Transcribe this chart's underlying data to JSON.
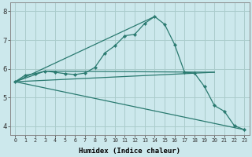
{
  "xlabel": "Humidex (Indice chaleur)",
  "bg_color": "#cce8ec",
  "grid_color": "#aacccc",
  "line_color": "#2a7a70",
  "xlim": [
    -0.5,
    23.5
  ],
  "ylim": [
    3.7,
    8.3
  ],
  "yticks": [
    4,
    5,
    6,
    7,
    8
  ],
  "xticks": [
    0,
    1,
    2,
    3,
    4,
    5,
    6,
    7,
    8,
    9,
    10,
    11,
    12,
    13,
    14,
    15,
    16,
    17,
    18,
    19,
    20,
    21,
    22,
    23
  ],
  "main_x": [
    0,
    1,
    2,
    3,
    4,
    5,
    6,
    7,
    8,
    9,
    10,
    11,
    12,
    13,
    14,
    15,
    16,
    17,
    18,
    19,
    20,
    21,
    22,
    23
  ],
  "main_y": [
    5.55,
    5.78,
    5.83,
    5.92,
    5.88,
    5.83,
    5.8,
    5.85,
    6.05,
    6.55,
    6.8,
    7.15,
    7.2,
    7.58,
    7.82,
    7.55,
    6.85,
    5.88,
    5.85,
    5.38,
    4.72,
    4.52,
    4.02,
    3.88
  ],
  "line2_x": [
    0,
    14
  ],
  "line2_y": [
    5.55,
    7.82
  ],
  "line3_x": [
    0,
    20
  ],
  "line3_y": [
    5.55,
    5.88
  ],
  "line4_x": [
    0,
    23
  ],
  "line4_y": [
    5.55,
    3.88
  ],
  "line5_x": [
    0,
    3,
    20
  ],
  "line5_y": [
    5.55,
    5.92,
    5.88
  ]
}
